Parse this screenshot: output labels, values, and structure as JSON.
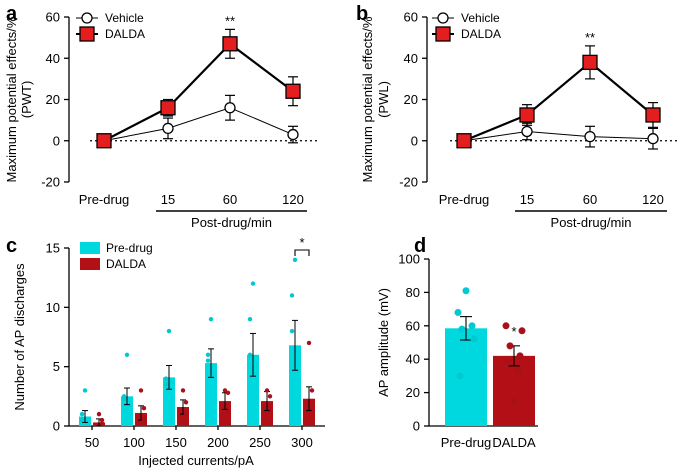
{
  "figure": {
    "colors": {
      "dalda": "#e41e1e",
      "cyan": "#00d8e0",
      "darkred": "#b30f17",
      "dot_cyan": "#00c9cf",
      "dot_red": "#a8101a"
    }
  },
  "chart_data": [
    {
      "panel": "a",
      "type": "line",
      "ylabel": "Maximum potential effects/%",
      "ylabel2": "(PWT)",
      "ylim": [
        -20,
        60
      ],
      "yticks": [
        "-20",
        "0",
        "20",
        "40",
        "60"
      ],
      "categories": [
        "Pre-drug",
        "15",
        "60",
        "120"
      ],
      "xgroup_label": "Post-drug/min",
      "series": [
        {
          "name": "Vehicle",
          "values": [
            0,
            6,
            16,
            3
          ],
          "err": [
            1,
            5,
            6,
            4
          ]
        },
        {
          "name": "DALDA",
          "values": [
            0,
            16,
            47,
            24
          ],
          "err": [
            1,
            4,
            7,
            7
          ]
        }
      ],
      "annotations": [
        "**"
      ]
    },
    {
      "panel": "b",
      "type": "line",
      "ylabel": "Maximum potential effects/%",
      "ylabel2": "(PWL)",
      "ylim": [
        -20,
        60
      ],
      "yticks": [
        "-20",
        "0",
        "20",
        "40",
        "60"
      ],
      "categories": [
        "Pre-drug",
        "15",
        "60",
        "120"
      ],
      "xgroup_label": "Post-drug/min",
      "series": [
        {
          "name": "Vehicle",
          "values": [
            0,
            4.5,
            2,
            1
          ],
          "err": [
            1,
            4,
            5,
            5
          ]
        },
        {
          "name": "DALDA",
          "values": [
            0,
            12.5,
            38,
            12.5
          ],
          "err": [
            1,
            5,
            8,
            6
          ]
        }
      ],
      "annotations": [
        "**"
      ]
    },
    {
      "panel": "c",
      "type": "bar",
      "ylabel": "Number of AP discharges",
      "xlabel": "Injected currents/pA",
      "ylim": [
        0,
        15
      ],
      "yticks": [
        "0",
        "5",
        "10",
        "15"
      ],
      "categories": [
        "50",
        "100",
        "150",
        "200",
        "250",
        "300"
      ],
      "series": [
        {
          "name": "Pre-drug",
          "values": [
            0.8,
            2.5,
            4.1,
            5.3,
            6.0,
            6.8
          ],
          "err": [
            0.5,
            0.7,
            1.0,
            1.2,
            1.8,
            2.1
          ],
          "points": [
            [
              3,
              1,
              0.5
            ],
            [
              6,
              2.5,
              2.3
            ],
            [
              8,
              4,
              3.5
            ],
            [
              9,
              6,
              5.5
            ],
            [
              12,
              9,
              6
            ],
            [
              14,
              11,
              8
            ]
          ]
        },
        {
          "name": "DALDA",
          "values": [
            0.3,
            1.1,
            1.6,
            2.1,
            2.1,
            2.3
          ],
          "err": [
            0.3,
            0.6,
            0.6,
            0.7,
            0.8,
            1.0
          ],
          "points": [
            [
              1,
              0.5,
              0.2
            ],
            [
              3,
              1.5,
              0.5
            ],
            [
              3,
              2,
              1
            ],
            [
              3,
              2.8,
              1.2
            ],
            [
              3,
              2.5,
              1.5
            ],
            [
              7,
              3,
              1.5
            ]
          ]
        }
      ],
      "annotations": [
        "*"
      ]
    },
    {
      "panel": "d",
      "type": "bar",
      "ylabel": "AP amplitude (mV)",
      "ylim": [
        0,
        100
      ],
      "yticks": [
        "0",
        "20",
        "40",
        "60",
        "80",
        "100"
      ],
      "categories": [
        "Pre-drug",
        "DALDA"
      ],
      "values": [
        58.5,
        42
      ],
      "err": [
        7,
        6
      ],
      "points": [
        [
          81,
          68,
          60,
          58,
          52,
          30
        ],
        [
          60,
          57,
          48,
          42,
          38,
          33,
          15
        ]
      ],
      "annotations": [
        "*"
      ]
    }
  ]
}
